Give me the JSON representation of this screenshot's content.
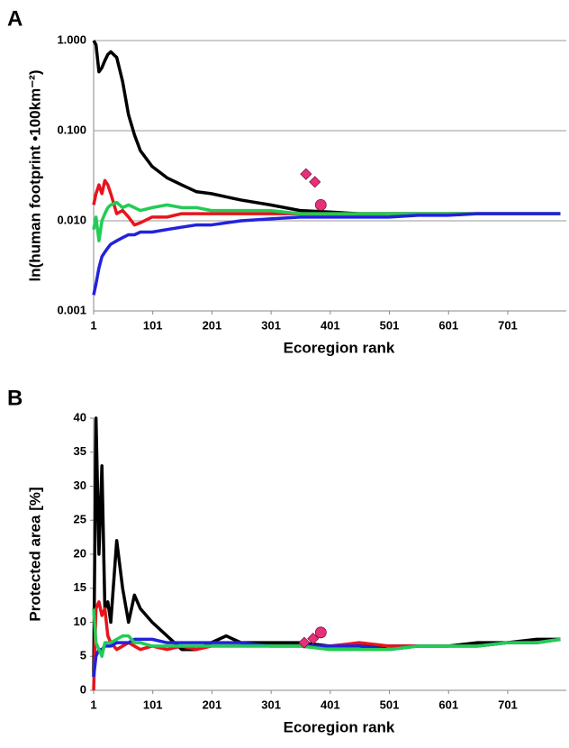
{
  "chart_data": [
    {
      "type": "line",
      "panel_label": "A",
      "xlabel": "Ecoregion rank",
      "ylabel": "ln(human footprint •100km⁻²)",
      "yscale": "log",
      "grid": true,
      "xlim": [
        1,
        800
      ],
      "xticks": [
        1,
        101,
        201,
        301,
        401,
        501,
        601,
        701
      ],
      "ylim": [
        0.001,
        1
      ],
      "yticks": [
        {
          "value": 0.001,
          "label": "0.001"
        },
        {
          "value": 0.01,
          "label": "0.010"
        },
        {
          "value": 0.1,
          "label": "0.100"
        },
        {
          "value": 1,
          "label": "1.000"
        }
      ],
      "x": [
        1,
        5,
        10,
        15,
        20,
        25,
        30,
        40,
        50,
        60,
        70,
        80,
        100,
        125,
        150,
        175,
        200,
        250,
        300,
        350,
        400,
        450,
        500,
        550,
        600,
        650,
        700,
        750,
        790
      ],
      "series": [
        {
          "color": "#000000",
          "values": [
            1.0,
            0.9,
            0.45,
            0.5,
            0.6,
            0.7,
            0.75,
            0.65,
            0.35,
            0.15,
            0.09,
            0.06,
            0.04,
            0.03,
            0.025,
            0.021,
            0.02,
            0.017,
            0.015,
            0.013,
            0.0125,
            0.012,
            0.012,
            0.012,
            0.012,
            0.012,
            0.012,
            0.012,
            0.012
          ]
        },
        {
          "color": "#e8141c",
          "values": [
            0.015,
            0.02,
            0.025,
            0.02,
            0.028,
            0.025,
            0.02,
            0.012,
            0.013,
            0.011,
            0.009,
            0.0095,
            0.011,
            0.011,
            0.012,
            0.012,
            0.012,
            0.012,
            0.012,
            0.012,
            0.012,
            0.012,
            0.012,
            0.012,
            0.012,
            0.012,
            0.012,
            0.012,
            0.012
          ]
        },
        {
          "color": "#22cc55",
          "values": [
            0.008,
            0.011,
            0.006,
            0.01,
            0.012,
            0.014,
            0.015,
            0.016,
            0.014,
            0.015,
            0.014,
            0.013,
            0.014,
            0.015,
            0.014,
            0.014,
            0.013,
            0.013,
            0.013,
            0.012,
            0.012,
            0.012,
            0.012,
            0.012,
            0.012,
            0.012,
            0.012,
            0.012,
            0.012
          ]
        },
        {
          "color": "#2222dd",
          "values": [
            0.0015,
            0.002,
            0.003,
            0.004,
            0.0045,
            0.005,
            0.0055,
            0.006,
            0.0065,
            0.007,
            0.007,
            0.0075,
            0.0075,
            0.008,
            0.0085,
            0.009,
            0.009,
            0.01,
            0.0105,
            0.011,
            0.011,
            0.011,
            0.011,
            0.0115,
            0.0115,
            0.012,
            0.012,
            0.012,
            0.012
          ]
        }
      ],
      "markers": [
        {
          "shape": "diamond",
          "color": "#e8307a",
          "x": 360,
          "y": 0.033
        },
        {
          "shape": "diamond",
          "color": "#e8307a",
          "x": 375,
          "y": 0.027
        },
        {
          "shape": "circle",
          "color": "#e8307a",
          "x": 385,
          "y": 0.015
        }
      ]
    },
    {
      "type": "line",
      "panel_label": "B",
      "xlabel": "Ecoregion rank",
      "ylabel": "Protected area [%]",
      "grid": false,
      "xlim": [
        1,
        800
      ],
      "xticks": [
        1,
        101,
        201,
        301,
        401,
        501,
        601,
        701
      ],
      "ylim": [
        0,
        40
      ],
      "yticks": [
        0,
        5,
        10,
        15,
        20,
        25,
        30,
        35,
        40
      ],
      "x": [
        1,
        5,
        10,
        15,
        20,
        25,
        30,
        40,
        50,
        60,
        70,
        80,
        100,
        125,
        150,
        175,
        200,
        225,
        250,
        300,
        350,
        400,
        450,
        500,
        550,
        600,
        650,
        700,
        750,
        790
      ],
      "series": [
        {
          "color": "#000000",
          "values": [
            2,
            40,
            20,
            33,
            12,
            13,
            10,
            22,
            15,
            10,
            14,
            12,
            10,
            8,
            6,
            6,
            7,
            8,
            7,
            7,
            7,
            6.5,
            6.5,
            6.5,
            6.5,
            6.5,
            7,
            7,
            7.5,
            7.5
          ]
        },
        {
          "color": "#e8141c",
          "values": [
            0,
            12,
            13,
            11,
            12,
            8,
            7,
            6,
            6.5,
            7,
            6.5,
            6,
            6.5,
            6,
            6.5,
            6,
            6.5,
            6.5,
            6.5,
            6.5,
            6.5,
            6.5,
            7,
            6.5,
            6.5,
            6.5,
            6.5,
            7,
            7,
            7.5
          ]
        },
        {
          "color": "#2222dd",
          "values": [
            2,
            5,
            6,
            6,
            6.5,
            6.5,
            6.5,
            7,
            7,
            7,
            7.5,
            7.5,
            7.5,
            7,
            7,
            7,
            7,
            7,
            7,
            6.5,
            6.5,
            6.5,
            6.5,
            6,
            6.5,
            6.5,
            6.5,
            7,
            7,
            7.5
          ]
        },
        {
          "color": "#22cc55",
          "values": [
            12,
            7,
            6,
            5,
            7,
            7,
            7,
            7.5,
            8,
            8,
            7,
            7,
            6.5,
            6.5,
            6.5,
            6.5,
            6.5,
            6.5,
            6.5,
            6.5,
            6.5,
            6,
            6,
            6,
            6.5,
            6.5,
            6.5,
            7,
            7,
            7.5
          ]
        }
      ],
      "markers": [
        {
          "shape": "diamond",
          "color": "#e8307a",
          "x": 357,
          "y": 7
        },
        {
          "shape": "diamond",
          "color": "#e8307a",
          "x": 372,
          "y": 7.6
        },
        {
          "shape": "circle",
          "color": "#e8307a",
          "x": 385,
          "y": 8.5
        }
      ]
    }
  ]
}
